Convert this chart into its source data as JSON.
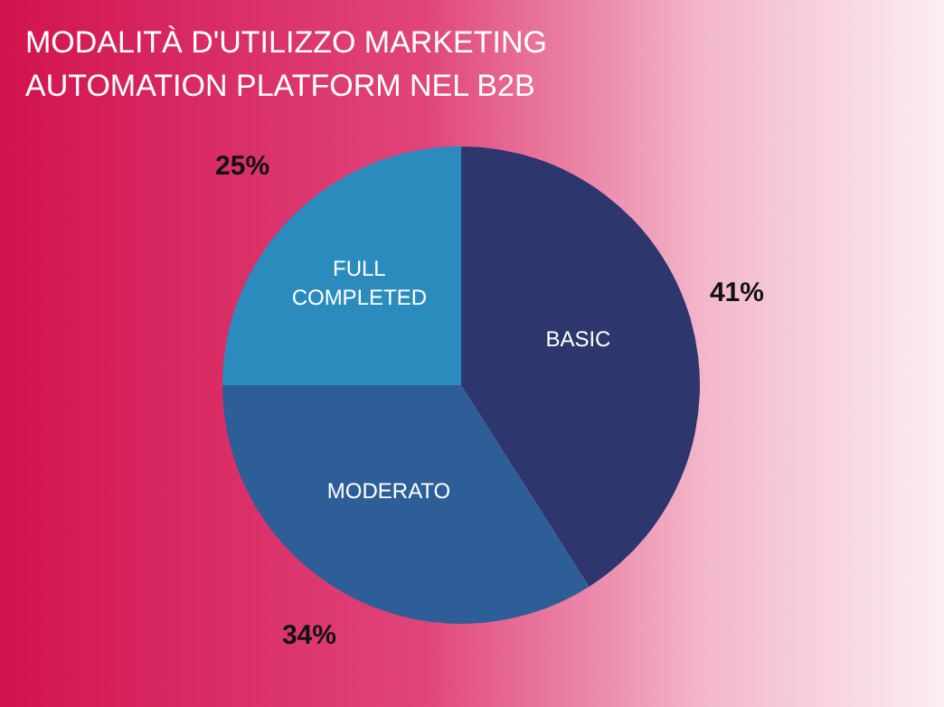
{
  "chart_data": {
    "type": "pie",
    "title": "MODALITÀ D'UTILIZZO MARKETING AUTOMATION PLATFORM NEL B2B",
    "categories": [
      "BASIC",
      "MODERATO",
      "FULL COMPLETED"
    ],
    "values": [
      41,
      34,
      25
    ],
    "colors": [
      "#2e366e",
      "#2e5e98",
      "#2b8bbd"
    ],
    "value_labels": [
      "41%",
      "34%",
      "25%"
    ],
    "legend": false
  }
}
